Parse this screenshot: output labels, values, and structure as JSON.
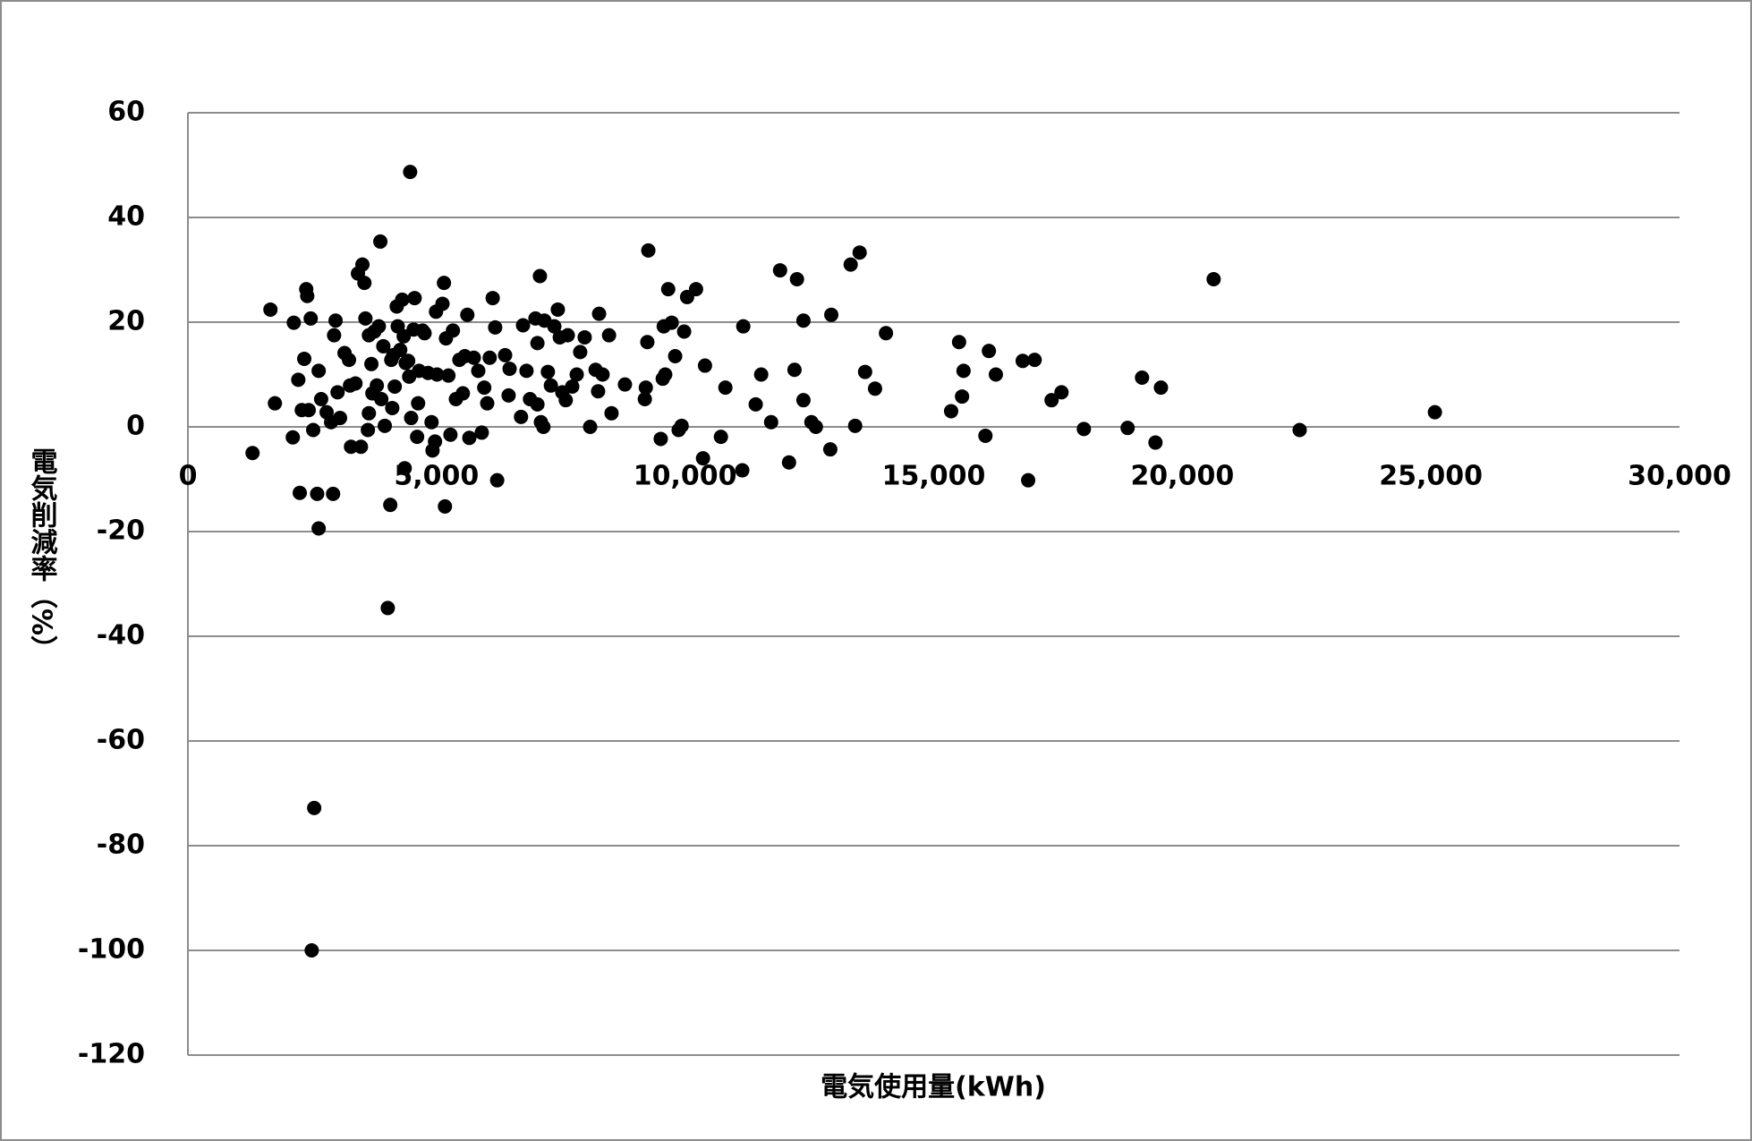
{
  "chart_data": {
    "type": "scatter",
    "x_label": "電気使用量(kWh)",
    "y_label": "電気削減率（%）",
    "color": "#000000",
    "grid": true,
    "xlim": [
      0,
      30000
    ],
    "xticks": [
      0,
      {
        "value": 5000,
        "label": "5,000"
      },
      {
        "value": 10000,
        "label": "10,000"
      },
      {
        "value": 15000,
        "label": "15,000"
      },
      {
        "value": 20000,
        "label": "20,000"
      },
      {
        "value": 25000,
        "label": "25,000"
      },
      {
        "value": 30000,
        "label": "30,000"
      }
    ],
    "ylim": [
      -120,
      60
    ],
    "yticks": [
      -120,
      -100,
      -80,
      -60,
      -40,
      -20,
      0,
      20,
      40,
      60
    ],
    "x": [
      1300,
      1660,
      1750,
      2130,
      2110,
      2220,
      2250,
      2340,
      2380,
      2400,
      2470,
      2290,
      2430,
      2520,
      2540,
      2490,
      2600,
      2630,
      2630,
      2680,
      2790,
      2880,
      2920,
      2940,
      2970,
      3010,
      3060,
      3150,
      3240,
      3260,
      3280,
      3370,
      3420,
      3480,
      3510,
      3550,
      3570,
      3620,
      3640,
      3640,
      3690,
      3710,
      3750,
      3800,
      3840,
      3870,
      3890,
      3930,
      3960,
      4020,
      4070,
      4090,
      4110,
      4130,
      4160,
      4200,
      4220,
      4270,
      4310,
      4340,
      4360,
      4380,
      4430,
      4450,
      4470,
      4490,
      4540,
      4560,
      4610,
      4630,
      4650,
      4720,
      4760,
      4830,
      4900,
      4920,
      4970,
      4990,
      5010,
      5120,
      5150,
      5170,
      5190,
      5240,
      5280,
      5330,
      5390,
      5460,
      5530,
      5570,
      5620,
      5660,
      5750,
      5840,
      5910,
      5960,
      6020,
      6070,
      6130,
      6180,
      6220,
      6380,
      6470,
      6450,
      6700,
      6740,
      6810,
      6880,
      6990,
      7030,
      7030,
      7080,
      7100,
      7150,
      7170,
      7240,
      7300,
      7370,
      7440,
      7480,
      7530,
      7600,
      7640,
      7730,
      7820,
      7890,
      7980,
      8090,
      8200,
      8250,
      8270,
      8340,
      8470,
      8520,
      8790,
      9190,
      9210,
      9240,
      9260,
      9510,
      9550,
      9570,
      9600,
      9660,
      9730,
      9800,
      9870,
      9930,
      9980,
      10040,
      10220,
      10360,
      10400,
      10720,
      10810,
      11150,
      11170,
      11420,
      11530,
      11730,
      11910,
      12090,
      12200,
      12250,
      12380,
      12380,
      12540,
      12630,
      12920,
      12940,
      13330,
      13420,
      13510,
      13620,
      13820,
      14040,
      15350,
      15510,
      15570,
      15600,
      16040,
      16110,
      16250,
      16790,
      16900,
      17030,
      17370,
      17570,
      18020,
      18900,
      19190,
      19460,
      19570,
      20630,
      22360,
      25080
    ],
    "values": [
      -5,
      22.4,
      4.5,
      19.9,
      -2,
      9,
      -12.6,
      13,
      26.3,
      25,
      20.7,
      3.2,
      3.2,
      -0.6,
      -72.8,
      -100,
      -12.8,
      -19.4,
      10.7,
      5.3,
      2.8,
      0.9,
      -12.8,
      17.5,
      20.3,
      6.6,
      1.7,
      14.1,
      12.8,
      7.9,
      -3.8,
      8.3,
      29.3,
      -3.8,
      31,
      27.5,
      20.7,
      -0.6,
      17.5,
      2.6,
      12,
      6.4,
      18.2,
      7.9,
      19.2,
      35.4,
      5.3,
      15.4,
      0.2,
      -34.6,
      -14.9,
      12.8,
      3.6,
      13.7,
      7.7,
      23,
      19.2,
      14.7,
      24.3,
      17.3,
      -7.9,
      12.2,
      12.6,
      9.6,
      48.7,
      1.7,
      18.6,
      24.6,
      -1.9,
      4.5,
      10.7,
      18.4,
      17.9,
      10.3,
      0.9,
      -4.5,
      -2.8,
      22,
      10,
      23.5,
      27.5,
      -15.2,
      16.9,
      9.8,
      -1.5,
      18.4,
      5.3,
      12.8,
      6.4,
      13.5,
      21.4,
      -2.1,
      13.2,
      10.7,
      -1.1,
      7.5,
      4.5,
      13.2,
      24.6,
      19,
      -10.2,
      13.7,
      11.1,
      6,
      1.9,
      19.4,
      10.7,
      5.3,
      20.7,
      16,
      4.3,
      28.8,
      0.9,
      0,
      20.3,
      10.5,
      7.9,
      19.2,
      22.4,
      17.1,
      6.6,
      5.1,
      17.5,
      7.7,
      10,
      14.3,
      17.1,
      0,
      10.9,
      6.8,
      21.6,
      10,
      17.5,
      2.6,
      8.1,
      5.3,
      7.5,
      16.2,
      33.7,
      -2.3,
      9.2,
      19.2,
      10,
      26.3,
      19.9,
      13.5,
      -0.6,
      0.2,
      18.2,
      24.8,
      26.3,
      -6,
      11.7,
      -1.9,
      7.5,
      -8.3,
      19.2,
      4.3,
      10,
      0.9,
      29.9,
      -6.8,
      10.9,
      28.2,
      5.1,
      20.3,
      0.9,
      0,
      -4.3,
      21.4,
      31,
      0.2,
      33.3,
      10.5,
      7.3,
      17.9,
      3,
      16.2,
      5.8,
      10.7,
      -1.7,
      14.5,
      10,
      12.6,
      -10.2,
      12.8,
      5.1,
      6.6,
      -0.4,
      -0.2,
      9.4,
      -3,
      7.5,
      28.2,
      -0.6,
      2.8
    ]
  }
}
